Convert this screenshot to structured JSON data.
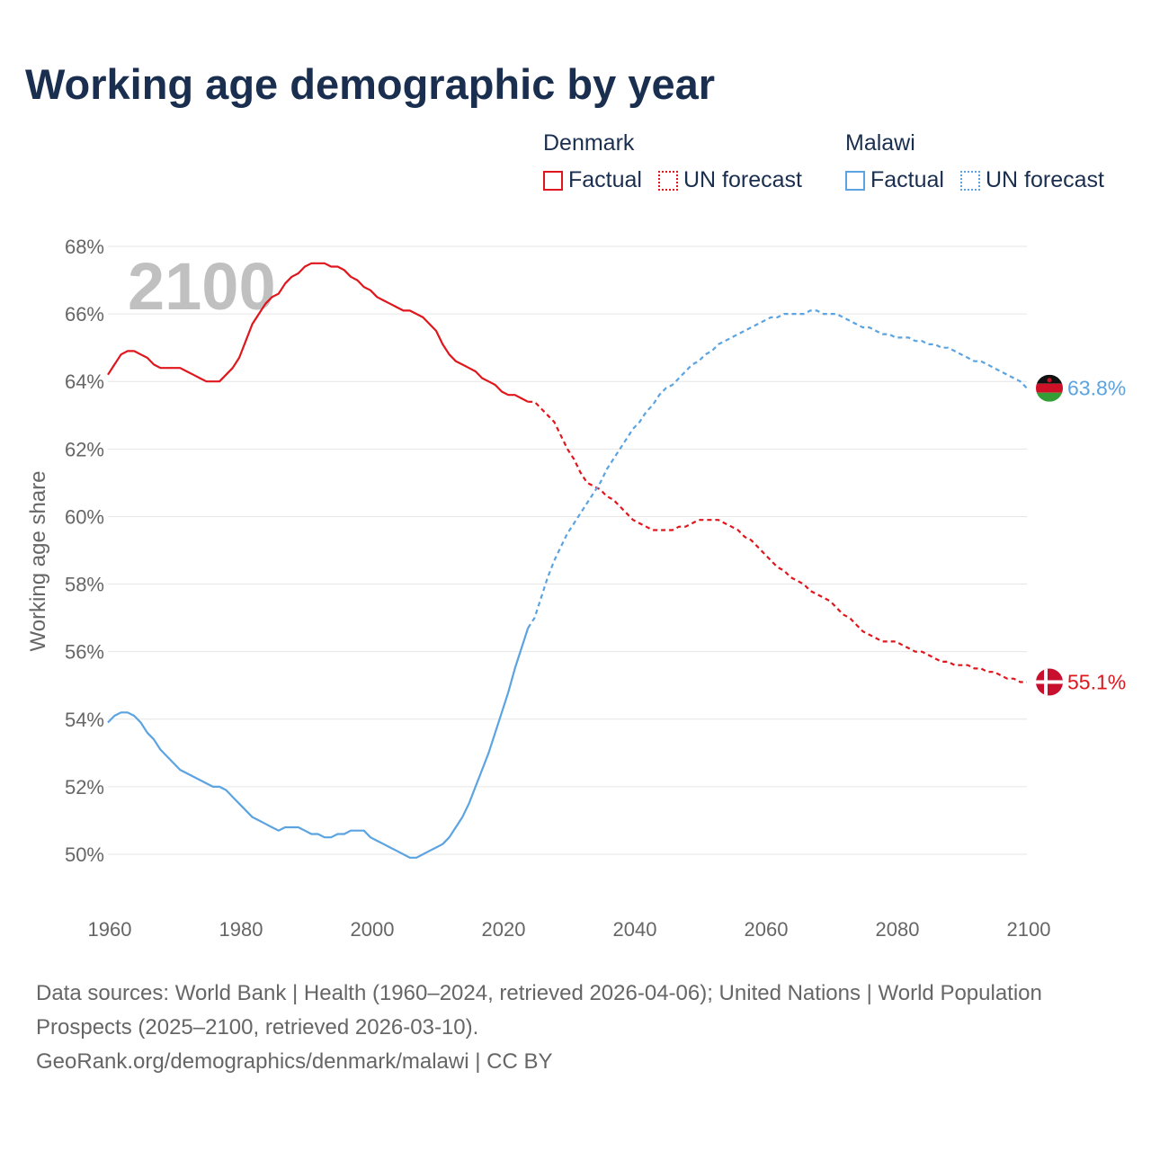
{
  "title": "Working age demographic by year",
  "legend": {
    "groups": [
      {
        "name": "Denmark",
        "factual": "Factual",
        "forecast": "UN forecast",
        "color": "#e0161d"
      },
      {
        "name": "Malawi",
        "factual": "Factual",
        "forecast": "UN forecast",
        "color": "#5ba3e1"
      }
    ]
  },
  "year_watermark": "2100",
  "footer": {
    "line1": "Data sources: World Bank | Health (1960–2024, retrieved 2026-04-06); United Nations | World Population Prospects (2025–2100, retrieved 2026-03-10).",
    "line2": "GeoRank.org/demographics/denmark/malawi | CC BY"
  },
  "chart_data": {
    "type": "line",
    "title": "Working age demographic by year",
    "xlabel": "",
    "ylabel": "Working age share",
    "xlim": [
      1960,
      2100
    ],
    "ylim": [
      49,
      68
    ],
    "x_ticks": [
      1960,
      1980,
      2000,
      2020,
      2040,
      2060,
      2080,
      2100
    ],
    "x_tick_labels": [
      "1960",
      "1980",
      "2000",
      "2020",
      "2040",
      "2060",
      "2080",
      "2100"
    ],
    "y_ticks": [
      50,
      52,
      54,
      56,
      58,
      60,
      62,
      64,
      66,
      68
    ],
    "y_tick_labels": [
      "50%",
      "52%",
      "54%",
      "56%",
      "58%",
      "60%",
      "62%",
      "64%",
      "66%",
      "68%"
    ],
    "grid": true,
    "series": [
      {
        "name": "Denmark",
        "color": "#e0161d",
        "end_label": "55.1%",
        "flag": "denmark-flag",
        "factual": {
          "x": [
            1960,
            1961,
            1962,
            1963,
            1964,
            1965,
            1966,
            1967,
            1968,
            1969,
            1970,
            1971,
            1972,
            1973,
            1974,
            1975,
            1976,
            1977,
            1978,
            1979,
            1980,
            1981,
            1982,
            1983,
            1984,
            1985,
            1986,
            1987,
            1988,
            1989,
            1990,
            1991,
            1992,
            1993,
            1994,
            1995,
            1996,
            1997,
            1998,
            1999,
            2000,
            2001,
            2002,
            2003,
            2004,
            2005,
            2006,
            2007,
            2008,
            2009,
            2010,
            2011,
            2012,
            2013,
            2014,
            2015,
            2016,
            2017,
            2018,
            2019,
            2020,
            2021,
            2022,
            2023,
            2024
          ],
          "y": [
            64.2,
            64.5,
            64.8,
            64.9,
            64.9,
            64.8,
            64.7,
            64.5,
            64.4,
            64.4,
            64.4,
            64.4,
            64.3,
            64.2,
            64.1,
            64.0,
            64.0,
            64.0,
            64.2,
            64.4,
            64.7,
            65.2,
            65.7,
            66.0,
            66.3,
            66.5,
            66.6,
            66.9,
            67.1,
            67.2,
            67.4,
            67.5,
            67.5,
            67.5,
            67.4,
            67.4,
            67.3,
            67.1,
            67.0,
            66.8,
            66.7,
            66.5,
            66.4,
            66.3,
            66.2,
            66.1,
            66.1,
            66.0,
            65.9,
            65.7,
            65.5,
            65.1,
            64.8,
            64.6,
            64.5,
            64.4,
            64.3,
            64.1,
            64.0,
            63.9,
            63.7,
            63.6,
            63.6,
            63.5,
            63.4
          ]
        },
        "forecast": {
          "x": [
            2024,
            2025,
            2026,
            2027,
            2028,
            2029,
            2030,
            2031,
            2032,
            2033,
            2034,
            2035,
            2036,
            2037,
            2038,
            2039,
            2040,
            2041,
            2042,
            2043,
            2044,
            2045,
            2046,
            2047,
            2048,
            2049,
            2050,
            2051,
            2052,
            2053,
            2054,
            2055,
            2056,
            2057,
            2058,
            2059,
            2060,
            2061,
            2062,
            2063,
            2064,
            2065,
            2066,
            2067,
            2068,
            2069,
            2070,
            2071,
            2072,
            2073,
            2074,
            2075,
            2076,
            2077,
            2078,
            2079,
            2080,
            2081,
            2082,
            2083,
            2084,
            2085,
            2086,
            2087,
            2088,
            2089,
            2090,
            2091,
            2092,
            2093,
            2094,
            2095,
            2096,
            2097,
            2098,
            2099,
            2100
          ],
          "y": [
            63.4,
            63.4,
            63.2,
            63.0,
            62.8,
            62.4,
            62.0,
            61.7,
            61.3,
            61.0,
            60.9,
            60.8,
            60.6,
            60.5,
            60.3,
            60.1,
            59.9,
            59.8,
            59.7,
            59.6,
            59.6,
            59.6,
            59.6,
            59.7,
            59.7,
            59.8,
            59.9,
            59.9,
            59.9,
            59.9,
            59.8,
            59.7,
            59.6,
            59.4,
            59.3,
            59.1,
            58.9,
            58.7,
            58.5,
            58.4,
            58.2,
            58.1,
            58.0,
            57.8,
            57.7,
            57.6,
            57.5,
            57.3,
            57.1,
            57.0,
            56.8,
            56.6,
            56.5,
            56.4,
            56.3,
            56.3,
            56.3,
            56.2,
            56.1,
            56.0,
            56.0,
            55.9,
            55.8,
            55.7,
            55.7,
            55.6,
            55.6,
            55.6,
            55.5,
            55.5,
            55.4,
            55.4,
            55.3,
            55.2,
            55.2,
            55.1,
            55.1
          ]
        }
      },
      {
        "name": "Malawi",
        "color": "#5ba3e1",
        "end_label": "63.8%",
        "flag": "malawi-flag",
        "factual": {
          "x": [
            1960,
            1961,
            1962,
            1963,
            1964,
            1965,
            1966,
            1967,
            1968,
            1969,
            1970,
            1971,
            1972,
            1973,
            1974,
            1975,
            1976,
            1977,
            1978,
            1979,
            1980,
            1981,
            1982,
            1983,
            1984,
            1985,
            1986,
            1987,
            1988,
            1989,
            1990,
            1991,
            1992,
            1993,
            1994,
            1995,
            1996,
            1997,
            1998,
            1999,
            2000,
            2001,
            2002,
            2003,
            2004,
            2005,
            2006,
            2007,
            2008,
            2009,
            2010,
            2011,
            2012,
            2013,
            2014,
            2015,
            2016,
            2017,
            2018,
            2019,
            2020,
            2021,
            2022,
            2023,
            2024
          ],
          "y": [
            53.9,
            54.1,
            54.2,
            54.2,
            54.1,
            53.9,
            53.6,
            53.4,
            53.1,
            52.9,
            52.7,
            52.5,
            52.4,
            52.3,
            52.2,
            52.1,
            52.0,
            52.0,
            51.9,
            51.7,
            51.5,
            51.3,
            51.1,
            51.0,
            50.9,
            50.8,
            50.7,
            50.8,
            50.8,
            50.8,
            50.7,
            50.6,
            50.6,
            50.5,
            50.5,
            50.6,
            50.6,
            50.7,
            50.7,
            50.7,
            50.5,
            50.4,
            50.3,
            50.2,
            50.1,
            50.0,
            49.9,
            49.9,
            50.0,
            50.1,
            50.2,
            50.3,
            50.5,
            50.8,
            51.1,
            51.5,
            52.0,
            52.5,
            53.0,
            53.6,
            54.2,
            54.8,
            55.5,
            56.1,
            56.7
          ]
        },
        "forecast": {
          "x": [
            2024,
            2025,
            2026,
            2027,
            2028,
            2029,
            2030,
            2031,
            2032,
            2033,
            2034,
            2035,
            2036,
            2037,
            2038,
            2039,
            2040,
            2041,
            2042,
            2043,
            2044,
            2045,
            2046,
            2047,
            2048,
            2049,
            2050,
            2051,
            2052,
            2053,
            2054,
            2055,
            2056,
            2057,
            2058,
            2059,
            2060,
            2061,
            2062,
            2063,
            2064,
            2065,
            2066,
            2067,
            2068,
            2069,
            2070,
            2071,
            2072,
            2073,
            2074,
            2075,
            2076,
            2077,
            2078,
            2079,
            2080,
            2081,
            2082,
            2083,
            2084,
            2085,
            2086,
            2087,
            2088,
            2089,
            2090,
            2091,
            2092,
            2093,
            2094,
            2095,
            2096,
            2097,
            2098,
            2099,
            2100
          ],
          "y": [
            56.7,
            57.0,
            57.6,
            58.2,
            58.7,
            59.1,
            59.5,
            59.8,
            60.1,
            60.4,
            60.7,
            61.0,
            61.4,
            61.7,
            62.0,
            62.3,
            62.6,
            62.8,
            63.1,
            63.3,
            63.6,
            63.8,
            63.9,
            64.1,
            64.3,
            64.5,
            64.6,
            64.8,
            64.9,
            65.1,
            65.2,
            65.3,
            65.4,
            65.5,
            65.6,
            65.7,
            65.8,
            65.9,
            65.9,
            66.0,
            66.0,
            66.0,
            66.0,
            66.1,
            66.1,
            66.0,
            66.0,
            66.0,
            65.9,
            65.8,
            65.7,
            65.6,
            65.6,
            65.5,
            65.4,
            65.4,
            65.3,
            65.3,
            65.3,
            65.2,
            65.2,
            65.1,
            65.1,
            65.0,
            65.0,
            64.9,
            64.8,
            64.7,
            64.6,
            64.6,
            64.5,
            64.4,
            64.3,
            64.2,
            64.1,
            64.0,
            63.8
          ]
        }
      }
    ]
  }
}
